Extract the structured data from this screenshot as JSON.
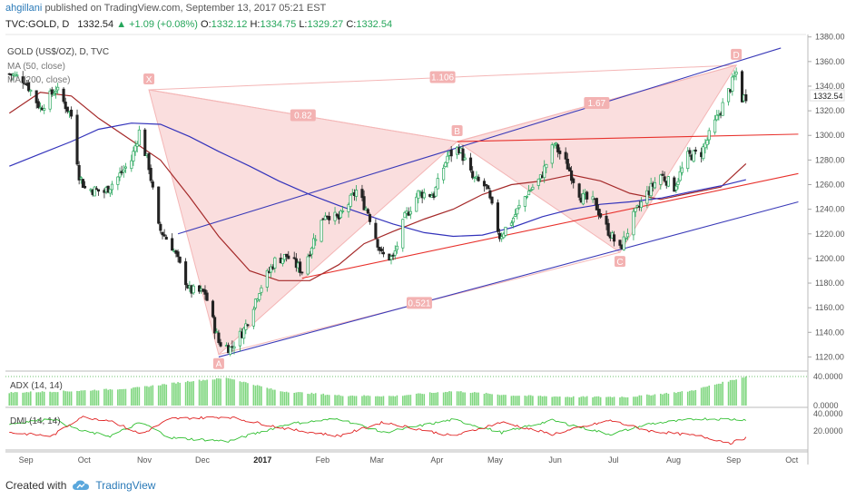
{
  "header": {
    "user": "ahgillani",
    "published": "published on TradingView.com, September 13, 2017 05:21 EST",
    "symbol": "TVC:GOLD, D",
    "last": "1332.54",
    "change": "▲ +1.09 (+0.08%)",
    "o_label": "O:",
    "o": "1332.12",
    "h_label": "H:",
    "h": "1334.75",
    "l_label": "L:",
    "l": "1329.27",
    "c_label": "C:",
    "c": "1332.54"
  },
  "footer": {
    "created_with": "Created with",
    "brand": "TradingView"
  },
  "colors": {
    "up": "#26a65b",
    "down": "#222222",
    "ma50": "#a52a2a",
    "ma200": "#3333bb",
    "pattern": "#f4b6b6",
    "trend_red": "#e8312c",
    "trend_blue": "#3a3ab8",
    "adx": "#7ed67e",
    "dmi_plus": "#2fbf2f",
    "dmi_minus": "#e02020"
  },
  "chart_data": [
    {
      "type": "candlestick",
      "title": "GOLD (US$/OZ), D, TVC",
      "legend": [
        "MA (50, close)",
        "MA (200, close)"
      ],
      "x_ticks": [
        "Sep",
        "Oct",
        "Nov",
        "Dec",
        "2017",
        "Feb",
        "Mar",
        "Apr",
        "May",
        "Jun",
        "Jul",
        "Aug",
        "Sep",
        "Oct"
      ],
      "y_ticks": [
        1120,
        1140,
        1160,
        1180,
        1200,
        1220,
        1240,
        1260,
        1280,
        1300,
        1320,
        1340,
        1360,
        1380
      ],
      "ylim": [
        1110,
        1382
      ],
      "last_price_label": "1332.54",
      "close_path": [
        [
          "2016-08-29",
          1350
        ],
        [
          "2016-09-06",
          1345
        ],
        [
          "2016-09-14",
          1322
        ],
        [
          "2016-09-22",
          1338
        ],
        [
          "2016-09-30",
          1316
        ],
        [
          "2016-10-04",
          1268
        ],
        [
          "2016-10-07",
          1257
        ],
        [
          "2016-10-17",
          1254
        ],
        [
          "2016-10-24",
          1266
        ],
        [
          "2016-10-31",
          1280
        ],
        [
          "2016-11-04",
          1303
        ],
        [
          "2016-11-09",
          1275
        ],
        [
          "2016-11-14",
          1225
        ],
        [
          "2016-11-21",
          1210
        ],
        [
          "2016-11-30",
          1174
        ],
        [
          "2016-12-08",
          1172
        ],
        [
          "2016-12-15",
          1132
        ],
        [
          "2016-12-21",
          1127
        ],
        [
          "2016-12-28",
          1142
        ],
        [
          "2017-01-05",
          1175
        ],
        [
          "2017-01-13",
          1198
        ],
        [
          "2017-01-19",
          1202
        ],
        [
          "2017-01-27",
          1190
        ],
        [
          "2017-02-02",
          1215
        ],
        [
          "2017-02-08",
          1237
        ],
        [
          "2017-02-15",
          1232
        ],
        [
          "2017-02-24",
          1255
        ],
        [
          "2017-03-02",
          1238
        ],
        [
          "2017-03-09",
          1203
        ],
        [
          "2017-03-15",
          1200
        ],
        [
          "2017-03-21",
          1233
        ],
        [
          "2017-03-28",
          1253
        ],
        [
          "2017-04-05",
          1252
        ],
        [
          "2017-04-12",
          1283
        ],
        [
          "2017-04-18",
          1290
        ],
        [
          "2017-04-25",
          1265
        ],
        [
          "2017-05-02",
          1258
        ],
        [
          "2017-05-09",
          1218
        ],
        [
          "2017-05-16",
          1233
        ],
        [
          "2017-05-23",
          1253
        ],
        [
          "2017-05-30",
          1265
        ],
        [
          "2017-06-06",
          1293
        ],
        [
          "2017-06-13",
          1275
        ],
        [
          "2017-06-20",
          1250
        ],
        [
          "2017-06-27",
          1245
        ],
        [
          "2017-07-03",
          1225
        ],
        [
          "2017-07-10",
          1207
        ],
        [
          "2017-07-17",
          1234
        ],
        [
          "2017-07-24",
          1253
        ],
        [
          "2017-07-31",
          1268
        ],
        [
          "2017-08-07",
          1258
        ],
        [
          "2017-08-14",
          1283
        ],
        [
          "2017-08-21",
          1286
        ],
        [
          "2017-08-28",
          1310
        ],
        [
          "2017-09-05",
          1339
        ],
        [
          "2017-09-08",
          1351
        ],
        [
          "2017-09-11",
          1330
        ],
        [
          "2017-09-13",
          1332
        ]
      ],
      "ma50_path": [
        [
          "2016-08-29",
          1318
        ],
        [
          "2016-09-14",
          1335
        ],
        [
          "2016-09-30",
          1332
        ],
        [
          "2016-10-14",
          1314
        ],
        [
          "2016-10-31",
          1296
        ],
        [
          "2016-11-15",
          1280
        ],
        [
          "2016-11-30",
          1250
        ],
        [
          "2016-12-15",
          1218
        ],
        [
          "2016-12-31",
          1190
        ],
        [
          "2017-01-15",
          1182
        ],
        [
          "2017-01-31",
          1182
        ],
        [
          "2017-02-15",
          1195
        ],
        [
          "2017-02-28",
          1212
        ],
        [
          "2017-03-15",
          1222
        ],
        [
          "2017-03-31",
          1232
        ],
        [
          "2017-04-15",
          1240
        ],
        [
          "2017-04-30",
          1252
        ],
        [
          "2017-05-15",
          1260
        ],
        [
          "2017-05-31",
          1263
        ],
        [
          "2017-06-15",
          1268
        ],
        [
          "2017-06-30",
          1263
        ],
        [
          "2017-07-15",
          1253
        ],
        [
          "2017-07-31",
          1248
        ],
        [
          "2017-08-15",
          1253
        ],
        [
          "2017-08-31",
          1258
        ],
        [
          "2017-09-13",
          1277
        ]
      ],
      "ma200_path": [
        [
          "2016-08-29",
          1275
        ],
        [
          "2016-09-14",
          1285
        ],
        [
          "2016-09-30",
          1295
        ],
        [
          "2016-10-14",
          1305
        ],
        [
          "2016-10-31",
          1310
        ],
        [
          "2016-11-15",
          1309
        ],
        [
          "2016-11-30",
          1299
        ],
        [
          "2016-12-15",
          1287
        ],
        [
          "2016-12-31",
          1275
        ],
        [
          "2017-01-15",
          1263
        ],
        [
          "2017-01-31",
          1252
        ],
        [
          "2017-02-15",
          1243
        ],
        [
          "2017-02-28",
          1236
        ],
        [
          "2017-03-15",
          1228
        ],
        [
          "2017-03-31",
          1221
        ],
        [
          "2017-04-15",
          1218
        ],
        [
          "2017-04-30",
          1219
        ],
        [
          "2017-05-15",
          1225
        ],
        [
          "2017-05-31",
          1234
        ],
        [
          "2017-06-15",
          1240
        ],
        [
          "2017-06-30",
          1244
        ],
        [
          "2017-07-15",
          1246
        ],
        [
          "2017-07-31",
          1249
        ],
        [
          "2017-08-15",
          1254
        ],
        [
          "2017-08-31",
          1259
        ],
        [
          "2017-09-13",
          1264
        ]
      ],
      "pattern": {
        "points": [
          {
            "label": "X",
            "date": "2016-11-09",
            "price": 1337
          },
          {
            "label": "A",
            "date": "2016-12-15",
            "price": 1122
          },
          {
            "label": "B",
            "date": "2017-04-17",
            "price": 1295
          },
          {
            "label": "C",
            "date": "2017-07-10",
            "price": 1205
          },
          {
            "label": "D",
            "date": "2017-09-08",
            "price": 1357
          }
        ],
        "ratios": [
          {
            "text": "1.106",
            "from": "X",
            "to": "D"
          },
          {
            "text": "0.82",
            "from": "X",
            "to": "B"
          },
          {
            "text": "1.67",
            "from": "B",
            "to": "D"
          },
          {
            "text": "0.521",
            "from": "A",
            "to": "C"
          }
        ]
      },
      "trendlines": [
        {
          "color": "blue",
          "from": [
            "2016-11-24",
            1220
          ],
          "to": [
            "2017-09-10",
            1358
          ],
          "extend_to": [
            "2017-10-01",
            1371
          ]
        },
        {
          "color": "blue",
          "from": [
            "2016-12-15",
            1120
          ],
          "to": [
            "2017-10-10",
            1246
          ]
        },
        {
          "color": "red",
          "from": [
            "2017-01-27",
            1184
          ],
          "to": [
            "2017-10-10",
            1269
          ]
        },
        {
          "color": "red",
          "from": [
            "2017-04-17",
            1295
          ],
          "to": [
            "2017-10-10",
            1301
          ]
        }
      ]
    },
    {
      "type": "bar",
      "title": "ADX (14, 14)",
      "y_ticks": [
        "40.0000",
        "0.0000"
      ],
      "ylim": [
        0,
        45
      ],
      "values_path": [
        [
          "2016-08-29",
          18
        ],
        [
          "2016-10-01",
          20
        ],
        [
          "2016-11-01",
          24
        ],
        [
          "2016-12-01",
          34
        ],
        [
          "2016-12-20",
          38
        ],
        [
          "2017-01-15",
          20
        ],
        [
          "2017-02-15",
          14
        ],
        [
          "2017-03-15",
          13
        ],
        [
          "2017-04-15",
          20
        ],
        [
          "2017-05-15",
          14
        ],
        [
          "2017-06-15",
          12
        ],
        [
          "2017-07-15",
          12
        ],
        [
          "2017-08-15",
          20
        ],
        [
          "2017-09-13",
          40
        ]
      ]
    },
    {
      "type": "line",
      "title": "DMI (14, 14)",
      "y_ticks": [
        "40.0000",
        "20.0000"
      ],
      "ylim": [
        0,
        45
      ],
      "series": [
        {
          "color": "green",
          "values_path": [
            [
              "2016-08-29",
              28
            ],
            [
              "2016-09-20",
              34
            ],
            [
              "2016-10-05",
              20
            ],
            [
              "2016-10-20",
              14
            ],
            [
              "2016-11-05",
              30
            ],
            [
              "2016-11-20",
              12
            ],
            [
              "2016-12-20",
              8
            ],
            [
              "2017-01-20",
              28
            ],
            [
              "2017-02-15",
              34
            ],
            [
              "2017-03-10",
              18
            ],
            [
              "2017-04-15",
              33
            ],
            [
              "2017-05-10",
              18
            ],
            [
              "2017-06-05",
              32
            ],
            [
              "2017-07-05",
              16
            ],
            [
              "2017-07-25",
              28
            ],
            [
              "2017-08-20",
              34
            ],
            [
              "2017-09-13",
              33
            ]
          ]
        },
        {
          "color": "red",
          "values_path": [
            [
              "2016-08-29",
              18
            ],
            [
              "2016-09-20",
              14
            ],
            [
              "2016-10-05",
              36
            ],
            [
              "2016-10-20",
              32
            ],
            [
              "2016-11-05",
              16
            ],
            [
              "2016-11-20",
              34
            ],
            [
              "2016-12-20",
              36
            ],
            [
              "2017-01-20",
              22
            ],
            [
              "2017-02-15",
              14
            ],
            [
              "2017-03-10",
              30
            ],
            [
              "2017-04-15",
              14
            ],
            [
              "2017-05-10",
              30
            ],
            [
              "2017-06-05",
              16
            ],
            [
              "2017-07-05",
              32
            ],
            [
              "2017-07-25",
              20
            ],
            [
              "2017-08-20",
              14
            ],
            [
              "2017-09-05",
              6
            ],
            [
              "2017-09-13",
              12
            ]
          ]
        }
      ]
    }
  ]
}
